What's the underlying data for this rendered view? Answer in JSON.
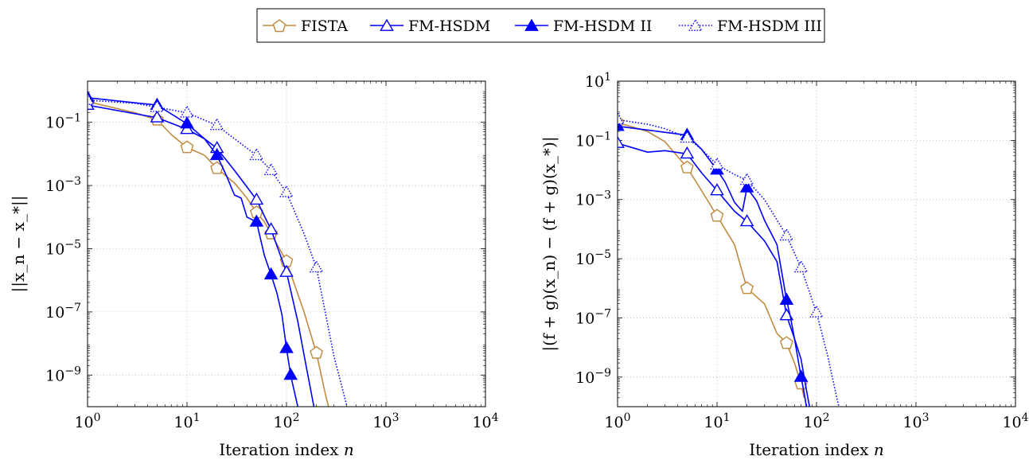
{
  "legend": {
    "entries": [
      {
        "label": "FISTA",
        "color": "#c08a3e",
        "marker": "pentagon",
        "dash": "solid",
        "fill": "none"
      },
      {
        "label": "FM-HSDM",
        "color": "#0000ff",
        "marker": "triangle",
        "dash": "solid",
        "fill": "none"
      },
      {
        "label": "FM-HSDM II",
        "color": "#0000ff",
        "marker": "triangle",
        "dash": "solid",
        "fill": "#0000ff"
      },
      {
        "label": "FM-HSDM III",
        "color": "#0000ff",
        "marker": "triangle",
        "dash": "dotted",
        "fill": "none"
      }
    ]
  },
  "chart_data": [
    {
      "type": "line",
      "xscale": "log",
      "yscale": "log",
      "xlim": [
        1,
        10000
      ],
      "ylim": [
        1e-10,
        2
      ],
      "grid": true,
      "legend_placement": "top-center",
      "xlabel": "Iteration index n",
      "ylabel": "||x_n − x_*||",
      "xticks": [
        {
          "value": 1,
          "exp": "0"
        },
        {
          "value": 10,
          "exp": "1"
        },
        {
          "value": 100,
          "exp": "2"
        },
        {
          "value": 1000,
          "exp": "3"
        },
        {
          "value": 10000,
          "exp": "4"
        }
      ],
      "yticks": [
        {
          "value": 0.1,
          "exp": "−1"
        },
        {
          "value": 0.001,
          "exp": "−3"
        },
        {
          "value": 1e-05,
          "exp": "−5"
        },
        {
          "value": 1e-07,
          "exp": "−7"
        },
        {
          "value": 1e-09,
          "exp": "−9"
        }
      ],
      "series": [
        {
          "name": "FISTA",
          "x": [
            1,
            3,
            5,
            7,
            10,
            15,
            20,
            30,
            40,
            50,
            60,
            70,
            100,
            150,
            200,
            250,
            270
          ],
          "y": [
            0.45,
            0.2,
            0.12,
            0.04,
            0.016,
            0.009,
            0.0035,
            0.0012,
            0.0004,
            0.00014,
            7e-05,
            3e-05,
            4e-06,
            1e-07,
            5e-09,
            2e-10,
            8e-11
          ],
          "markers_x": [
            1,
            5,
            10,
            20,
            50,
            70,
            100,
            200
          ]
        },
        {
          "name": "FM-HSDM",
          "x": [
            1,
            5,
            10,
            15,
            20,
            30,
            40,
            50,
            70,
            100,
            130,
            160,
            190
          ],
          "y": [
            0.35,
            0.14,
            0.06,
            0.03,
            0.015,
            0.003,
            0.0009,
            0.00035,
            4e-05,
            1.8e-06,
            5e-08,
            1.5e-09,
            9e-11
          ],
          "markers_x": [
            1,
            5,
            10,
            20,
            50,
            70,
            100
          ]
        },
        {
          "name": "FM-HSDM II",
          "x": [
            1,
            5,
            10,
            15,
            20,
            25,
            30,
            35,
            40,
            50,
            60,
            70,
            80,
            90,
            100,
            110,
            120,
            130,
            140
          ],
          "y": [
            0.6,
            0.35,
            0.09,
            0.03,
            0.009,
            0.002,
            0.0005,
            0.0004,
            0.0001,
            7e-05,
            6e-06,
            1.5e-06,
            4e-07,
            8e-08,
            7e-09,
            1e-09,
            3e-10,
            1e-10,
            5e-11
          ],
          "markers_x": [
            1,
            5,
            10,
            20,
            50,
            70,
            100,
            110
          ]
        },
        {
          "name": "FM-HSDM III",
          "x": [
            1,
            3,
            5,
            10,
            20,
            30,
            50,
            70,
            100,
            150,
            200,
            300,
            400,
            420
          ],
          "y": [
            0.5,
            0.4,
            0.3,
            0.2,
            0.08,
            0.03,
            0.009,
            0.003,
            0.0006,
            3e-05,
            2.5e-06,
            4e-09,
            1.2e-10,
            7e-11
          ],
          "markers_x": [
            1,
            5,
            10,
            20,
            50,
            70,
            100,
            200
          ]
        }
      ]
    },
    {
      "type": "line",
      "xscale": "log",
      "yscale": "log",
      "xlim": [
        1,
        10000
      ],
      "ylim": [
        1e-10,
        10
      ],
      "grid": true,
      "legend_placement": "top-center",
      "xlabel": "Iteration index n",
      "ylabel": "|(f + g)(x_n) − (f + g)(x_*)|",
      "xticks": [
        {
          "value": 1,
          "exp": "0"
        },
        {
          "value": 10,
          "exp": "1"
        },
        {
          "value": 100,
          "exp": "2"
        },
        {
          "value": 1000,
          "exp": "3"
        },
        {
          "value": 10000,
          "exp": "4"
        }
      ],
      "yticks": [
        {
          "value": 10,
          "exp": "1"
        },
        {
          "value": 0.1,
          "exp": "−1"
        },
        {
          "value": 0.001,
          "exp": "−3"
        },
        {
          "value": 1e-05,
          "exp": "−5"
        },
        {
          "value": 1e-07,
          "exp": "−7"
        },
        {
          "value": 1e-09,
          "exp": "−9"
        }
      ],
      "series": [
        {
          "name": "FISTA",
          "x": [
            1,
            2,
            3,
            5,
            7,
            10,
            15,
            20,
            30,
            40,
            50,
            60,
            70,
            75
          ],
          "y": [
            0.4,
            0.2,
            0.09,
            0.012,
            0.002,
            0.00028,
            3e-05,
            1e-06,
            3e-07,
            3e-08,
            1.4e-08,
            3e-09,
            6e-10,
            2e-10
          ],
          "markers_x": [
            1,
            5,
            10,
            20,
            50,
            70
          ]
        },
        {
          "name": "FM-HSDM",
          "x": [
            1,
            2,
            3,
            5,
            7,
            10,
            15,
            20,
            30,
            40,
            50,
            60,
            70,
            80,
            85
          ],
          "y": [
            0.08,
            0.04,
            0.045,
            0.035,
            0.008,
            0.002,
            0.0004,
            0.00018,
            4e-05,
            8e-06,
            1.2e-07,
            2e-08,
            4e-09,
            3e-10,
            1e-10
          ],
          "markers_x": [
            1,
            5,
            10,
            20,
            50
          ]
        },
        {
          "name": "FM-HSDM II",
          "x": [
            1,
            5,
            7,
            10,
            12,
            15,
            18,
            20,
            25,
            30,
            40,
            50,
            55,
            60,
            70,
            75,
            80
          ],
          "y": [
            0.3,
            0.15,
            0.05,
            0.01,
            0.004,
            0.0008,
            0.0004,
            0.0025,
            0.0009,
            0.0002,
            3e-05,
            4e-07,
            1e-07,
            2e-08,
            1e-09,
            3e-10,
            8e-11
          ],
          "markers_x": [
            1,
            5,
            10,
            20,
            50,
            70
          ]
        },
        {
          "name": "FM-HSDM III",
          "x": [
            1,
            2,
            3,
            5,
            7,
            10,
            15,
            20,
            30,
            50,
            70,
            100,
            130,
            160,
            170
          ],
          "y": [
            0.5,
            0.35,
            0.25,
            0.12,
            0.05,
            0.015,
            0.007,
            0.0045,
            0.001,
            6e-05,
            5e-06,
            1.5e-07,
            5e-09,
            2e-10,
            8e-11
          ],
          "markers_x": [
            1,
            5,
            10,
            20,
            50,
            70,
            100
          ]
        }
      ]
    }
  ]
}
